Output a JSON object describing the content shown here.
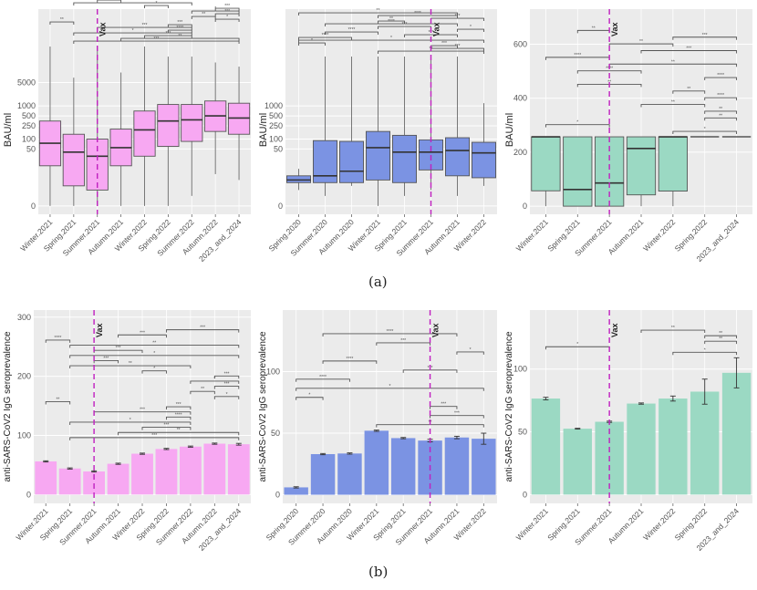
{
  "captions": {
    "a": "(a)",
    "b": "(b)"
  },
  "colors": {
    "pink": "#f7a8f2",
    "blue": "#7b93e3",
    "green": "#9bd9c3",
    "vax_line": "#c020c0",
    "panel_bg": "#ebebeb"
  },
  "chart_data": [
    {
      "id": "a1",
      "type": "box",
      "ylabel": "BAU/ml",
      "yscale": "log-like",
      "yticks": [
        "0",
        "50",
        "100",
        "250",
        "500",
        "1000",
        "5000"
      ],
      "categories": [
        "Winter.2021",
        "Spring.2021",
        "Summer.2021",
        "Autumn.2021",
        "Winter.2022",
        "Spring.2022",
        "Summer.2022",
        "Autumn.2022",
        "2023_and_2024"
      ],
      "boxes": [
        {
          "lo": 0,
          "q1": 15,
          "med": 75,
          "q3": 350,
          "hi": 60000
        },
        {
          "lo": 0,
          "q1": 3,
          "med": 40,
          "q3": 140,
          "hi": 7000
        },
        {
          "lo": 0,
          "q1": 2,
          "med": 30,
          "q3": 100,
          "hi": 60000
        },
        {
          "lo": 0,
          "q1": 15,
          "med": 55,
          "q3": 200,
          "hi": 10000
        },
        {
          "lo": 0,
          "q1": 30,
          "med": 190,
          "q3": 700,
          "hi": 60000
        },
        {
          "lo": 0,
          "q1": 60,
          "med": 350,
          "q3": 1100,
          "hi": 30000
        },
        {
          "lo": 1,
          "q1": 85,
          "med": 380,
          "q3": 1100,
          "hi": 30000
        },
        {
          "lo": 8,
          "q1": 170,
          "med": 500,
          "q3": 1400,
          "hi": 20000
        },
        {
          "lo": 5,
          "q1": 140,
          "med": 430,
          "q3": 1200,
          "hi": 15000
        }
      ],
      "vax_label": "Vax",
      "vax_at": "Summer.2021",
      "significance_brackets": 30
    },
    {
      "id": "a2",
      "type": "box",
      "ylabel": "BAU/ml",
      "yscale": "log-like",
      "yticks": [
        "0",
        "50",
        "100",
        "250",
        "500",
        "1000"
      ],
      "categories": [
        "Spring.2020",
        "Summer.2020",
        "Autumn.2020",
        "Winter.2021",
        "Spring.2021",
        "Summer.2021",
        "Autumn.2021",
        "Winter.2022"
      ],
      "boxes": [
        {
          "lo": 2,
          "q1": 4,
          "med": 5,
          "q3": 7,
          "hi": 12
        },
        {
          "lo": 1,
          "q1": 4,
          "med": 7,
          "q3": 90,
          "hi": 30000
        },
        {
          "lo": 3,
          "q1": 4,
          "med": 10,
          "q3": 85,
          "hi": 30000
        },
        {
          "lo": 0,
          "q1": 5,
          "med": 55,
          "q3": 170,
          "hi": 30000
        },
        {
          "lo": 1,
          "q1": 4,
          "med": 40,
          "q3": 130,
          "hi": 30000
        },
        {
          "lo": 2,
          "q1": 11,
          "med": 40,
          "q3": 95,
          "hi": 30000
        },
        {
          "lo": 1,
          "q1": 7,
          "med": 45,
          "q3": 110,
          "hi": 30000
        },
        {
          "lo": 3,
          "q1": 6,
          "med": 38,
          "q3": 80,
          "hi": 1200
        }
      ],
      "vax_label": "Vax",
      "vax_at": "Summer.2021",
      "significance_brackets": 15
    },
    {
      "id": "a3",
      "type": "box",
      "ylabel": "BAU/ml",
      "ylim": [
        -30,
        730
      ],
      "yticks": [
        0,
        200,
        400,
        600
      ],
      "categories": [
        "Winter.2021",
        "Spring.2021",
        "Summer.2021",
        "Autumn.2021",
        "Winter.2022",
        "Spring.2022",
        "2023_and_2024"
      ],
      "boxes": [
        {
          "lo": 0,
          "q1": 57,
          "med": 257,
          "q3": 257,
          "hi": 257
        },
        {
          "lo": 0,
          "q1": 0,
          "med": 62,
          "q3": 257,
          "hi": 257
        },
        {
          "lo": 0,
          "q1": 0,
          "med": 86,
          "q3": 257,
          "hi": 257
        },
        {
          "lo": 0,
          "q1": 42,
          "med": 214,
          "q3": 257,
          "hi": 257
        },
        {
          "lo": 0,
          "q1": 56,
          "med": 257,
          "q3": 257,
          "hi": 257
        },
        {
          "lo": 257,
          "q1": 257,
          "med": 257,
          "q3": 257,
          "hi": 257
        },
        {
          "lo": 257,
          "q1": 257,
          "med": 257,
          "q3": 257,
          "hi": 257
        }
      ],
      "vax_label": "Vax",
      "vax_at": "Summer.2021",
      "significance_brackets": 16
    },
    {
      "id": "b1",
      "type": "bar",
      "ylabel": "anti-SARS-CoV2 IgG seroprevalence",
      "ylim": [
        -15,
        312
      ],
      "yticks": [
        0,
        100,
        200,
        300
      ],
      "categories": [
        "Winter.2021",
        "Spring.2021",
        "Summer.2021",
        "Autumn.2021",
        "Winter.2022",
        "Spring.2022",
        "Summer.2022",
        "Autumn.2022",
        "2023_and_2024"
      ],
      "values": [
        56,
        44,
        39,
        52,
        69,
        77,
        81,
        86,
        85
      ],
      "errors": [
        1,
        1,
        1,
        1,
        1,
        1,
        1,
        1,
        1.5
      ],
      "vax_label": "Vax",
      "vax_at": "Summer.2021",
      "significance_brackets": 22
    },
    {
      "id": "b2",
      "type": "bar",
      "ylabel": "anti-SARS-CoV2 IgG seroprevalence",
      "ylim": [
        -7,
        150
      ],
      "yticks": [
        0,
        50,
        100
      ],
      "categories": [
        "Spring.2020",
        "Summer.2020",
        "Autumn.2020",
        "Winter.2021",
        "Spring.2021",
        "Summer.2021",
        "Autumn.2021",
        "Winter.2022"
      ],
      "values": [
        6,
        33,
        33.5,
        52,
        46,
        44,
        46.5,
        45.5
      ],
      "errors": [
        0.5,
        0.5,
        0.5,
        0.5,
        0.5,
        1,
        1,
        4.5
      ],
      "vax_label": "Vax",
      "vax_at": "Summer.2021",
      "significance_brackets": 11
    },
    {
      "id": "b3",
      "type": "bar",
      "ylabel": "anti-SARS-CoV2 IgG seroprevalence",
      "ylim": [
        -7,
        147
      ],
      "yticks": [
        0,
        50,
        100
      ],
      "categories": [
        "Winter.2021",
        "Spring.2021",
        "Summer.2021",
        "Autumn.2021",
        "Winter.2022",
        "Spring.2022",
        "2023_and_2024"
      ],
      "values": [
        76.5,
        52.5,
        58,
        72.5,
        76.5,
        82,
        97
      ],
      "errors": [
        1,
        0.3,
        0.5,
        0.5,
        2,
        10,
        12
      ],
      "vax_label": "Vax",
      "vax_at": "Summer.2021",
      "significance_brackets": 5
    }
  ]
}
